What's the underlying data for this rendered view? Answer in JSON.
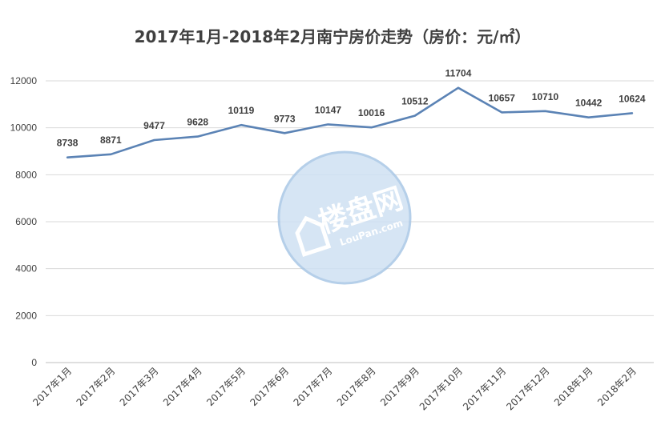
{
  "chart_data": {
    "type": "line",
    "title": "2017年1月-2018年2月南宁房价走势（房价：元/㎡）",
    "categories": [
      "2017年1月",
      "2017年2月",
      "2017年3月",
      "2017年4月",
      "2017年5月",
      "2017年6月",
      "2017年7月",
      "2017年8月",
      "2017年9月",
      "2017年10月",
      "2017年11月",
      "2017年12月",
      "2018年1月",
      "2018年2月"
    ],
    "series": [
      {
        "values": [
          8738,
          8871,
          9477,
          9628,
          10119,
          9773,
          10147,
          10016,
          10512,
          11704,
          10657,
          10710,
          10442,
          10624
        ]
      }
    ],
    "ylim": [
      0,
      12000
    ],
    "yticks": [
      0,
      2000,
      4000,
      6000,
      8000,
      10000,
      12000
    ],
    "grid": true,
    "line_color": "#5B83B5"
  },
  "watermark": {
    "text_cn": "楼盘网",
    "text_en": "LouPan.com",
    "icon": "house-logo-icon"
  }
}
